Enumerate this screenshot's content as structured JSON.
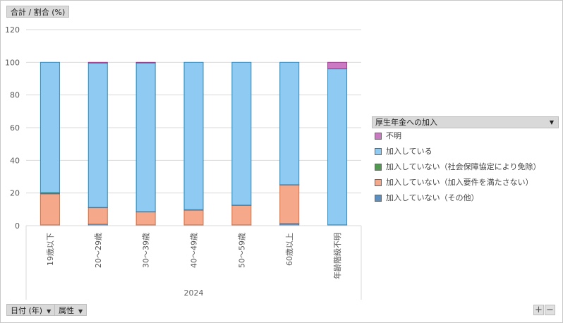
{
  "header": {
    "value_label": "合計 / 割合 (%)"
  },
  "footer": {
    "date_field": "日付 (年)",
    "attr_field": "属性"
  },
  "legend": {
    "title": "厚生年金への加入"
  },
  "zoom": {
    "plus": "+",
    "minus": "−"
  },
  "colors": {
    "unknown": "#cc79c4",
    "enrolled": "#8ecaf2",
    "not_social": "#4f9a4f",
    "not_requirements": "#f5a98a",
    "not_other": "#5b8fc2"
  },
  "chart_data": {
    "type": "bar",
    "stacked": true,
    "group_label": "2024",
    "categories": [
      "19歳以下",
      "20～29歳",
      "30～39歳",
      "40～49歳",
      "50～59歳",
      "60歳以上",
      "年齢階級不明"
    ],
    "ylim": [
      0,
      120
    ],
    "yticks": [
      0,
      20,
      40,
      60,
      80,
      100,
      120
    ],
    "grid": true,
    "legend_position": "right",
    "series": [
      {
        "name": "加入していない（その他）",
        "color_key": "not_other",
        "values": [
          0.5,
          1.0,
          0.5,
          0.5,
          0.5,
          1.5,
          0.5
        ]
      },
      {
        "name": "加入していない（加入要件を満たさない）",
        "color_key": "not_requirements",
        "values": [
          19.0,
          10.0,
          8.0,
          9.0,
          12.0,
          23.5,
          0
        ]
      },
      {
        "name": "加入していない（社会保障協定により免除）",
        "color_key": "not_social",
        "values": [
          0.8,
          0.2,
          0.1,
          0.3,
          0.1,
          0.1,
          0
        ]
      },
      {
        "name": "加入している",
        "color_key": "enrolled",
        "values": [
          79.7,
          88.3,
          91.0,
          90.2,
          87.4,
          74.9,
          95.5
        ]
      },
      {
        "name": "不明",
        "color_key": "unknown",
        "values": [
          0,
          0.5,
          0.4,
          0,
          0,
          0,
          4.0
        ]
      }
    ],
    "legend_order": [
      "不明",
      "加入している",
      "加入していない（社会保障協定により免除）",
      "加入していない（加入要件を満たさない）",
      "加入していない（その他）"
    ]
  }
}
